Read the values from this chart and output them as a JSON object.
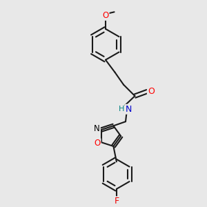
{
  "bg_color": "#e8e8e8",
  "bond_color": "#1a1a1a",
  "bond_width": 1.5,
  "atom_colors": {
    "O": "#ff0000",
    "N": "#0000cc",
    "F": "#ee0000",
    "H": "#008080",
    "C": "#1a1a1a"
  },
  "font_size_atom": 8.5
}
